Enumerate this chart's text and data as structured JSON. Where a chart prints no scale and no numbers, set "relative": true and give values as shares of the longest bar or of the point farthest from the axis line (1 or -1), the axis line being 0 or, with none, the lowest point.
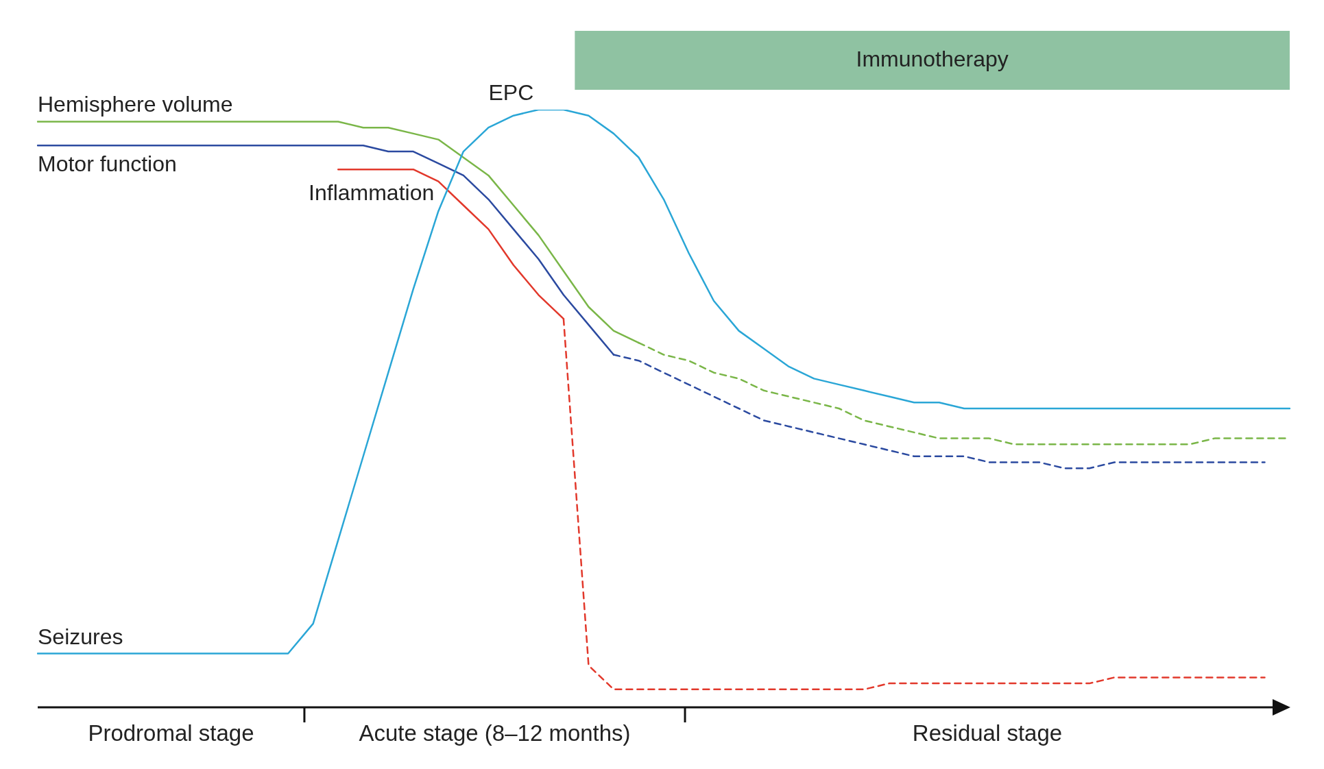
{
  "chart_data": {
    "type": "line",
    "relative": true,
    "legend": false,
    "categories": [
      null,
      null,
      null,
      null,
      null,
      null,
      null,
      null,
      null,
      null,
      null,
      null,
      null,
      null,
      null,
      null,
      null,
      null,
      null,
      null,
      null,
      null,
      null,
      null,
      null,
      null,
      null,
      null,
      null,
      null,
      null,
      null,
      null,
      null,
      null,
      null,
      null,
      null,
      null,
      null,
      null,
      null,
      null,
      null,
      null,
      null,
      null,
      null,
      null,
      null,
      null
    ],
    "series": [
      {
        "name": "Seizures",
        "color": "#2aa6d6",
        "values": [
          0.09,
          0.09,
          0.09,
          0.09,
          0.09,
          0.09,
          0.09,
          0.09,
          0.09,
          0.09,
          0.09,
          0.14,
          0.28,
          0.42,
          0.56,
          0.7,
          0.83,
          0.93,
          0.97,
          0.99,
          1.0,
          1.0,
          0.99,
          0.96,
          0.92,
          0.85,
          0.76,
          0.68,
          0.63,
          0.6,
          0.57,
          0.55,
          0.54,
          0.53,
          0.52,
          0.51,
          0.51,
          0.5,
          0.5,
          0.5,
          0.5,
          0.5,
          0.5,
          0.5,
          0.5,
          0.5,
          0.5,
          0.5,
          0.5,
          0.5,
          0.5
        ]
      },
      {
        "name": "Hemisphere volume",
        "color": "#7ab648",
        "values": [
          0.98,
          0.98,
          0.98,
          0.98,
          0.98,
          0.98,
          0.98,
          0.98,
          0.98,
          0.98,
          0.98,
          0.98,
          0.98,
          0.97,
          0.97,
          0.96,
          0.95,
          0.92,
          0.89,
          0.84,
          0.79,
          0.73,
          0.67,
          0.63,
          0.61,
          null,
          null,
          null,
          null,
          null,
          null,
          null,
          null,
          null,
          null,
          null,
          null,
          null,
          null,
          null,
          null,
          null,
          null,
          null,
          null,
          null,
          null,
          null,
          null,
          null,
          null
        ]
      },
      {
        "color": "#7ab648",
        "line_style": "dashed",
        "values": [
          null,
          null,
          null,
          null,
          null,
          null,
          null,
          null,
          null,
          null,
          null,
          null,
          null,
          null,
          null,
          null,
          null,
          null,
          null,
          null,
          null,
          null,
          null,
          null,
          0.61,
          0.59,
          0.58,
          0.56,
          0.55,
          0.53,
          0.52,
          0.51,
          0.5,
          0.48,
          0.47,
          0.46,
          0.45,
          0.45,
          0.45,
          0.44,
          0.44,
          0.44,
          0.44,
          0.44,
          0.44,
          0.44,
          0.44,
          0.45,
          0.45,
          0.45,
          0.45
        ]
      },
      {
        "name": "Motor function",
        "color": "#2b4aa0",
        "values": [
          0.94,
          0.94,
          0.94,
          0.94,
          0.94,
          0.94,
          0.94,
          0.94,
          0.94,
          0.94,
          0.94,
          0.94,
          0.94,
          0.94,
          0.93,
          0.93,
          0.91,
          0.89,
          0.85,
          0.8,
          0.75,
          0.69,
          0.64,
          0.59,
          null,
          null,
          null,
          null,
          null,
          null,
          null,
          null,
          null,
          null,
          null,
          null,
          null,
          null,
          null,
          null,
          null,
          null,
          null,
          null,
          null,
          null,
          null,
          null,
          null,
          null,
          null
        ]
      },
      {
        "color": "#2b4aa0",
        "line_style": "dashed",
        "values": [
          null,
          null,
          null,
          null,
          null,
          null,
          null,
          null,
          null,
          null,
          null,
          null,
          null,
          null,
          null,
          null,
          null,
          null,
          null,
          null,
          null,
          null,
          null,
          0.59,
          0.58,
          0.56,
          0.54,
          0.52,
          0.5,
          0.48,
          0.47,
          0.46,
          0.45,
          0.44,
          0.43,
          0.42,
          0.42,
          0.42,
          0.41,
          0.41,
          0.41,
          0.4,
          0.4,
          0.41,
          0.41,
          0.41,
          0.41,
          0.41,
          0.41,
          0.41,
          null
        ]
      },
      {
        "name": "Inflammation",
        "color": "#e2382b",
        "values": [
          null,
          null,
          null,
          null,
          null,
          null,
          null,
          null,
          null,
          null,
          null,
          null,
          0.9,
          0.9,
          0.9,
          0.9,
          0.88,
          0.84,
          0.8,
          0.74,
          0.69,
          0.65,
          null,
          null,
          null,
          null,
          null,
          null,
          null,
          null,
          null,
          null,
          null,
          null,
          null,
          null,
          null,
          null,
          null,
          null,
          null,
          null,
          null,
          null,
          null,
          null,
          null,
          null,
          null,
          null,
          null
        ]
      },
      {
        "color": "#e2382b",
        "line_style": "dashed",
        "values": [
          null,
          null,
          null,
          null,
          null,
          null,
          null,
          null,
          null,
          null,
          null,
          null,
          null,
          null,
          null,
          null,
          null,
          null,
          null,
          null,
          null,
          0.65,
          0.07,
          0.03,
          0.03,
          0.03,
          0.03,
          0.03,
          0.03,
          0.03,
          0.03,
          0.03,
          0.03,
          0.03,
          0.04,
          0.04,
          0.04,
          0.04,
          0.04,
          0.04,
          0.04,
          0.04,
          0.04,
          0.05,
          0.05,
          0.05,
          0.05,
          0.05,
          0.05,
          0.05,
          null
        ]
      }
    ],
    "annotations": [
      "EPC",
      "Immunotherapy",
      "Prodromal stage",
      "Acute stage (8–12 months)",
      "Residual stage"
    ]
  }
}
